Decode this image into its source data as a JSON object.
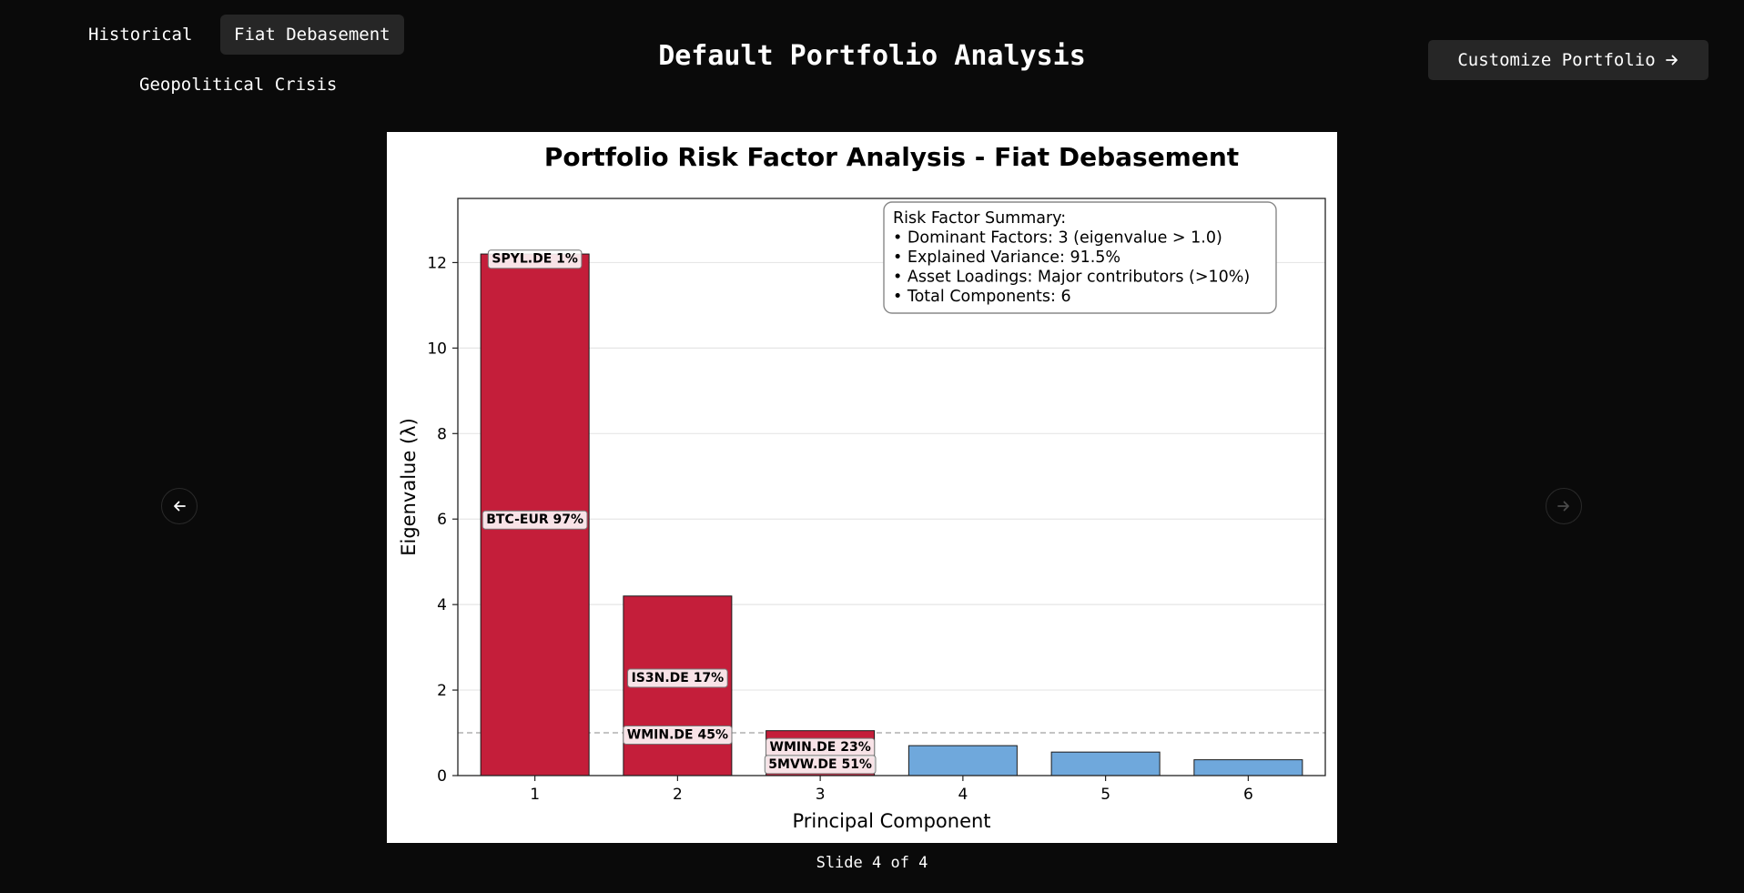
{
  "tabs": [
    {
      "label": "Historical",
      "active": false
    },
    {
      "label": "Fiat Debasement",
      "active": true
    },
    {
      "label": "Geopolitical Crisis",
      "active": false
    }
  ],
  "header": {
    "title": "Default Portfolio Analysis",
    "customize_label": "Customize Portfolio"
  },
  "nav": {
    "prev_icon": "arrow-left-icon",
    "next_icon": "arrow-right-icon"
  },
  "footer": {
    "slide_counter": "Slide 4 of 4"
  },
  "chart_data": {
    "type": "bar",
    "title": "Portfolio Risk Factor Analysis - Fiat Debasement",
    "xlabel": "Principal Component",
    "ylabel": "Eigenvalue (λ)",
    "categories": [
      "1",
      "2",
      "3",
      "4",
      "5",
      "6"
    ],
    "values": [
      12.2,
      4.2,
      1.05,
      0.7,
      0.55,
      0.37
    ],
    "dominant": [
      true,
      true,
      true,
      false,
      false,
      false
    ],
    "ylim": [
      0,
      13.5
    ],
    "yticks": [
      0,
      2,
      4,
      6,
      8,
      10,
      12
    ],
    "threshold": 1.0,
    "colors": {
      "dominant": "#c41e3a",
      "minor": "#6fa8dc",
      "threshold": "#b0b0b0",
      "grid": "#e6e6e6"
    },
    "grid": true,
    "annotations": [
      {
        "bar": 0,
        "y": 12.1,
        "text": "SPYL.DE 1%"
      },
      {
        "bar": 0,
        "y": 6.0,
        "text": "BTC-EUR 97%"
      },
      {
        "bar": 1,
        "y": 2.3,
        "text": "IS3N.DE 17%"
      },
      {
        "bar": 1,
        "y": 0.97,
        "text": "WMIN.DE 45%"
      },
      {
        "bar": 2,
        "y": 0.68,
        "text": "WMIN.DE 23%"
      },
      {
        "bar": 2,
        "y": 0.28,
        "text": "5MVW.DE 51%"
      }
    ],
    "summary_box": {
      "placement": "top-right",
      "lines": [
        "Risk Factor Summary:",
        "• Dominant Factors: 3 (eigenvalue > 1.0)",
        "• Explained Variance: 91.5%",
        "• Asset Loadings: Major contributors (>10%)",
        "• Total Components: 6"
      ]
    }
  }
}
